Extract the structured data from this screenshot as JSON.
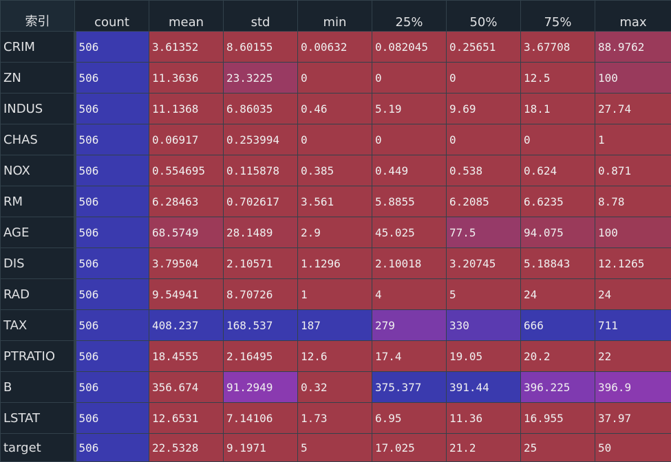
{
  "table": {
    "index_header": "索引",
    "columns": [
      "count",
      "mean",
      "std",
      "min",
      "25%",
      "50%",
      "75%",
      "max"
    ],
    "rows": [
      {
        "label": "CRIM",
        "values": [
          "506",
          "3.61352",
          "8.60155",
          "0.00632",
          "0.082045",
          "0.25651",
          "3.67708",
          "88.9762"
        ],
        "colors": [
          "#3a3aae",
          "#a03a48",
          "#a03a48",
          "#a03a48",
          "#a03a48",
          "#a03a48",
          "#a03a48",
          "#9a3a5a"
        ]
      },
      {
        "label": "ZN",
        "values": [
          "506",
          "11.3636",
          "23.3225",
          "0",
          "0",
          "0",
          "12.5",
          "100"
        ],
        "colors": [
          "#3a3aae",
          "#a03a48",
          "#993a62",
          "#a03a48",
          "#a03a48",
          "#a03a48",
          "#a03a48",
          "#993a5c"
        ]
      },
      {
        "label": "INDUS",
        "values": [
          "506",
          "11.1368",
          "6.86035",
          "0.46",
          "5.19",
          "9.69",
          "18.1",
          "27.74"
        ],
        "colors": [
          "#3a3aae",
          "#a03a48",
          "#a03a48",
          "#a03a48",
          "#a03a48",
          "#a03a48",
          "#a03a48",
          "#a03a48"
        ]
      },
      {
        "label": "CHAS",
        "values": [
          "506",
          "0.06917",
          "0.253994",
          "0",
          "0",
          "0",
          "0",
          "1"
        ],
        "colors": [
          "#3a3aae",
          "#a03a48",
          "#a03a48",
          "#a03a48",
          "#a03a48",
          "#a03a48",
          "#a03a48",
          "#a03a48"
        ]
      },
      {
        "label": "NOX",
        "values": [
          "506",
          "0.554695",
          "0.115878",
          "0.385",
          "0.449",
          "0.538",
          "0.624",
          "0.871"
        ],
        "colors": [
          "#3a3aae",
          "#a03a48",
          "#a03a48",
          "#a03a48",
          "#a03a48",
          "#a03a48",
          "#a03a48",
          "#a03a48"
        ]
      },
      {
        "label": "RM",
        "values": [
          "506",
          "6.28463",
          "0.702617",
          "3.561",
          "5.8855",
          "6.2085",
          "6.6235",
          "8.78"
        ],
        "colors": [
          "#3a3aae",
          "#a03a48",
          "#a03a48",
          "#a03a48",
          "#a03a48",
          "#a03a48",
          "#a03a48",
          "#a03a48"
        ]
      },
      {
        "label": "AGE",
        "values": [
          "506",
          "68.5749",
          "28.1489",
          "2.9",
          "45.025",
          "77.5",
          "94.075",
          "100"
        ],
        "colors": [
          "#3a3aae",
          "#9c3a58",
          "#9f3a4c",
          "#a03a48",
          "#a03a48",
          "#963a68",
          "#9a3a5a",
          "#9b3a56"
        ]
      },
      {
        "label": "DIS",
        "values": [
          "506",
          "3.79504",
          "2.10571",
          "1.1296",
          "2.10018",
          "3.20745",
          "5.18843",
          "12.1265"
        ],
        "colors": [
          "#3a3aae",
          "#a03a48",
          "#a03a48",
          "#a03a48",
          "#a03a48",
          "#a03a48",
          "#a03a48",
          "#a03a48"
        ]
      },
      {
        "label": "RAD",
        "values": [
          "506",
          "9.54941",
          "8.70726",
          "1",
          "4",
          "5",
          "24",
          "24"
        ],
        "colors": [
          "#3a3aae",
          "#a03a48",
          "#a03a48",
          "#a03a48",
          "#a03a48",
          "#a03a48",
          "#a03a48",
          "#a03a48"
        ]
      },
      {
        "label": "TAX",
        "values": [
          "506",
          "408.237",
          "168.537",
          "187",
          "279",
          "330",
          "666",
          "711"
        ],
        "colors": [
          "#3a3aae",
          "#3a3aae",
          "#3a3aae",
          "#3a3aae",
          "#7a3aa8",
          "#5a3ab0",
          "#3a3aae",
          "#3a3aae"
        ]
      },
      {
        "label": "PTRATIO",
        "values": [
          "506",
          "18.4555",
          "2.16495",
          "12.6",
          "17.4",
          "19.05",
          "20.2",
          "22"
        ],
        "colors": [
          "#3a3aae",
          "#a03a48",
          "#a03a48",
          "#a03a48",
          "#a03a48",
          "#a03a48",
          "#a03a48",
          "#a03a48"
        ]
      },
      {
        "label": "B",
        "values": [
          "506",
          "356.674",
          "91.2949",
          "0.32",
          "375.377",
          "391.44",
          "396.225",
          "396.9"
        ],
        "colors": [
          "#3a3aae",
          "#a03a48",
          "#8a3ab0",
          "#a03a48",
          "#3a3aae",
          "#3a3aae",
          "#7f3ab0",
          "#8a3ab0"
        ]
      },
      {
        "label": "LSTAT",
        "values": [
          "506",
          "12.6531",
          "7.14106",
          "1.73",
          "6.95",
          "11.36",
          "16.955",
          "37.97"
        ],
        "colors": [
          "#3a3aae",
          "#a03a48",
          "#a03a48",
          "#a03a48",
          "#a03a48",
          "#a03a48",
          "#a03a48",
          "#a03a48"
        ]
      },
      {
        "label": "target",
        "values": [
          "506",
          "22.5328",
          "9.1971",
          "5",
          "17.025",
          "21.2",
          "25",
          "50"
        ],
        "colors": [
          "#3a3aae",
          "#a03a48",
          "#a03a48",
          "#a03a48",
          "#a03a48",
          "#a03a48",
          "#a03a48",
          "#a03a48"
        ]
      }
    ]
  }
}
